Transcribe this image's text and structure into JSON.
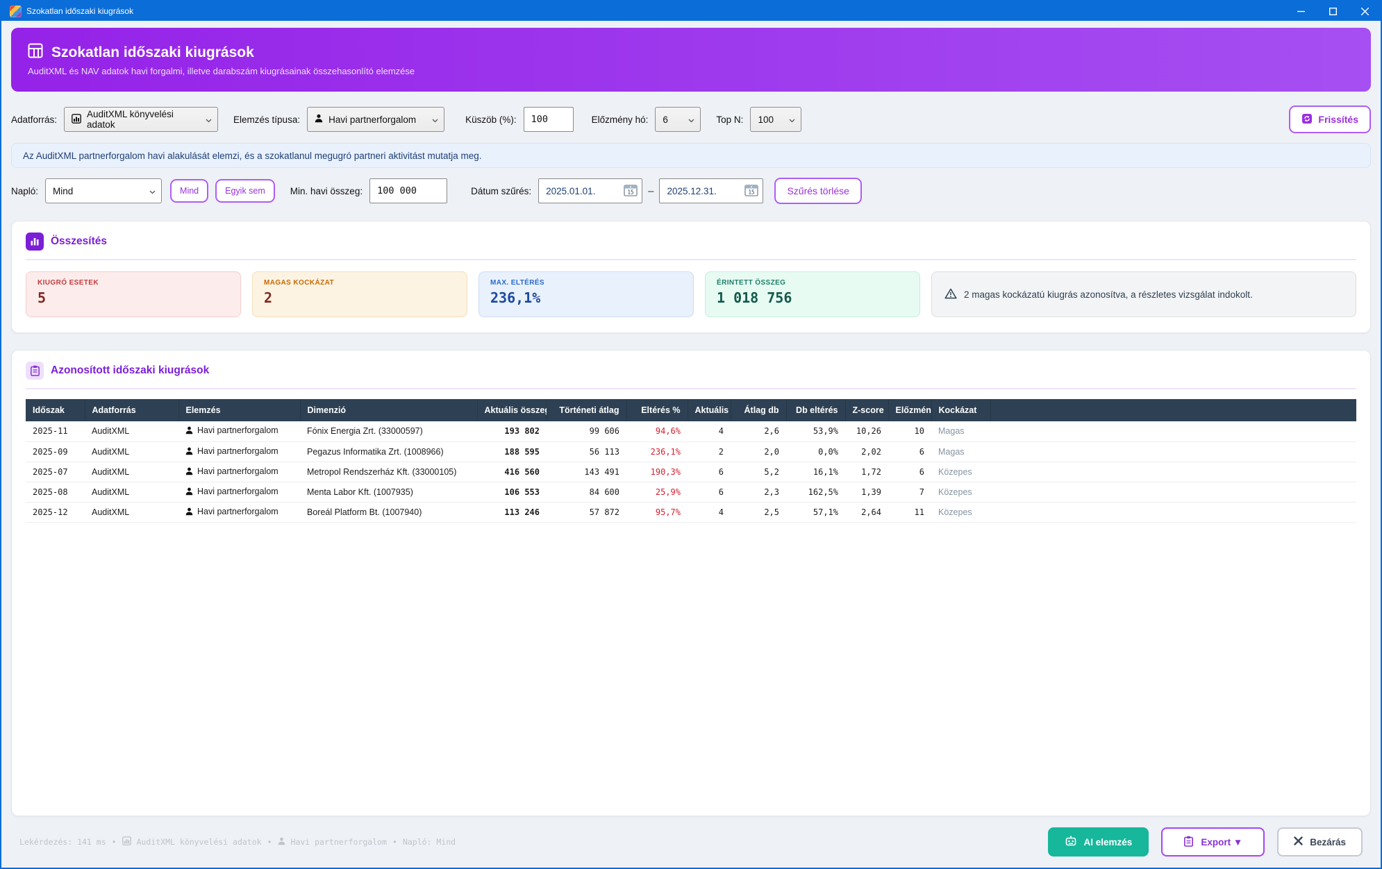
{
  "window": {
    "title": "Szokatlan időszaki kiugrások",
    "controls": [
      "minimize",
      "maximize",
      "close"
    ]
  },
  "header": {
    "title": "Szokatlan időszaki kiugrások",
    "subtitle": "AuditXML és NAV adatok havi forgalmi, illetve darabszám kiugrásainak összehasonlító elemzése"
  },
  "filters": {
    "datasource_label": "Adatforrás:",
    "datasource_value": "AuditXML könyvelési adatok",
    "analysis_label": "Elemzés típusa:",
    "analysis_value": "Havi partnerforgalom",
    "threshold_label": "Küszöb (%):",
    "threshold_value": "100",
    "history_label": "Előzmény hó:",
    "history_value": "6",
    "topn_label": "Top N:",
    "topn_value": "100",
    "refresh_label": "Frissítés",
    "info_text": "Az AuditXML partnerforgalom havi alakulását elemzi, és a szokatlanul megugró partneri aktivitást mutatja meg.",
    "journal_label": "Napló:",
    "journal_value": "Mind",
    "all_button": "Mind",
    "none_button": "Egyik sem",
    "min_amount_label": "Min. havi összeg:",
    "min_amount_value": "100 000",
    "date_filter_label": "Dátum szűrés:",
    "date_from": "2025.01.01.",
    "date_to": "2025.12.31.",
    "date_separator": "–",
    "calendar_day": "15",
    "clear_filter_label": "Szűrés törlése"
  },
  "summary": {
    "title": "Összesítés",
    "cards": [
      {
        "label": "KIUGRÓ ESETEK",
        "value": "5"
      },
      {
        "label": "MAGAS KOCKÁZAT",
        "value": "2"
      },
      {
        "label": "MAX. ELTÉRÉS",
        "value": "236,1%"
      },
      {
        "label": "ÉRINTETT ÖSSZEG",
        "value": "1 018 756"
      }
    ],
    "warning": "2 magas kockázatú kiugrás azonosítva, a részletes vizsgálat indokolt."
  },
  "table_section": {
    "title": "Azonosított időszaki kiugrások",
    "columns": [
      "Időszak",
      "Adatforrás",
      "Elemzés",
      "Dimenzió",
      "Aktuális összeg",
      "Történeti átlag",
      "Eltérés %",
      "Aktuális",
      "Átlag db",
      "Db eltérés",
      "Z-score",
      "Előzmény",
      "Kockázat"
    ],
    "rows": [
      {
        "period": "2025-11",
        "source": "AuditXML",
        "analysis": "Havi partnerforgalom",
        "dimension": "Fónix Energia Zrt. (33000597)",
        "current_sum": "193 802",
        "hist_avg": "99 606",
        "deviation_pct": "94,6%",
        "current_count": "4",
        "avg_count": "2,6",
        "count_dev_pct": "53,9%",
        "zscore": "10,26",
        "prev_months": "10",
        "risk": "Magas"
      },
      {
        "period": "2025-09",
        "source": "AuditXML",
        "analysis": "Havi partnerforgalom",
        "dimension": "Pegazus Informatika Zrt. (1008966)",
        "current_sum": "188 595",
        "hist_avg": "56 113",
        "deviation_pct": "236,1%",
        "current_count": "2",
        "avg_count": "2,0",
        "count_dev_pct": "0,0%",
        "zscore": "2,02",
        "prev_months": "6",
        "risk": "Magas"
      },
      {
        "period": "2025-07",
        "source": "AuditXML",
        "analysis": "Havi partnerforgalom",
        "dimension": "Metropol Rendszerház Kft. (33000105)",
        "current_sum": "416 560",
        "hist_avg": "143 491",
        "deviation_pct": "190,3%",
        "current_count": "6",
        "avg_count": "5,2",
        "count_dev_pct": "16,1%",
        "zscore": "1,72",
        "prev_months": "6",
        "risk": "Közepes"
      },
      {
        "period": "2025-08",
        "source": "AuditXML",
        "analysis": "Havi partnerforgalom",
        "dimension": "Menta Labor Kft. (1007935)",
        "current_sum": "106 553",
        "hist_avg": "84 600",
        "deviation_pct": "25,9%",
        "current_count": "6",
        "avg_count": "2,3",
        "count_dev_pct": "162,5%",
        "zscore": "1,39",
        "prev_months": "7",
        "risk": "Közepes"
      },
      {
        "period": "2025-12",
        "source": "AuditXML",
        "analysis": "Havi partnerforgalom",
        "dimension": "Boreál Platform Bt. (1007940)",
        "current_sum": "113 246",
        "hist_avg": "57 872",
        "deviation_pct": "95,7%",
        "current_count": "4",
        "avg_count": "2,5",
        "count_dev_pct": "57,1%",
        "zscore": "2,64",
        "prev_months": "11",
        "risk": "Közepes"
      }
    ]
  },
  "footer": {
    "status": {
      "query": "Lekérdezés: 141 ms",
      "separator": "•",
      "source": "AuditXML könyvelési adatok",
      "analysis": "Havi partnerforgalom",
      "journal": "Napló: Mind"
    },
    "ai_label": "AI elemzés",
    "export_label": "Export ▼",
    "close_label": "Bezárás"
  }
}
